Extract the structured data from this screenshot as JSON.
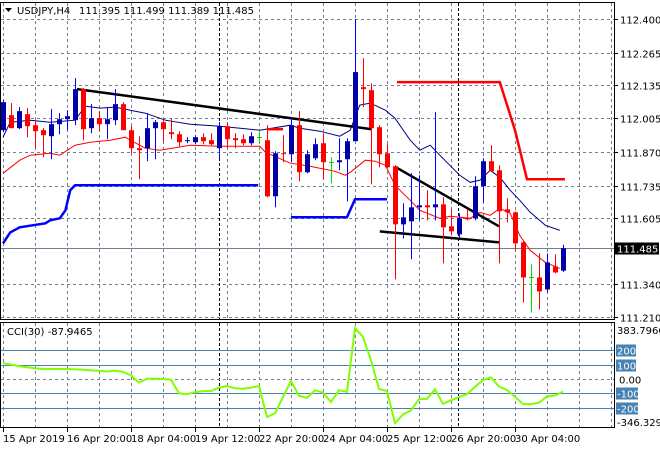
{
  "header": {
    "menu_icon": "triangle-down-icon",
    "symbol": "USDJPY,H4",
    "ohlc": "111.395 111.499 111.389 111.485"
  },
  "colors": {
    "bull_body": "#0000a8",
    "bull_wick": "#0000ff",
    "bear": "#ff0000",
    "doji": "#00e000",
    "ma_fast": "#000080",
    "ma_slow": "#ff0000",
    "channel_low": "#0000ff",
    "channel_high": "#ff0000",
    "trendline": "#000000",
    "cci": "#80ff00",
    "cci_levels": "#4682b4",
    "grid": "#708090"
  },
  "chart_data": [
    {
      "type": "candlestick",
      "title": "USDJPY,H4",
      "price_axis_ticks": [
        "112.400",
        "112.265",
        "112.135",
        "112.005",
        "111.870",
        "111.735",
        "111.605",
        "111.340",
        "111.210"
      ],
      "ylim": [
        111.21,
        112.4
      ],
      "current_price": "111.485",
      "time_axis_labels": [
        "15 Apr 2019",
        "16 Apr 20:00",
        "18 Apr 04:00",
        "19 Apr 12:00",
        "22 Apr 20:00",
        "24 Apr 04:00",
        "25 Apr 12:00",
        "26 Apr 20:00",
        "30 Apr 04:00"
      ],
      "grid": true,
      "candles_ohlc": [
        [
          111.956,
          112.076,
          111.948,
          112.068
        ],
        [
          112.016,
          112.064,
          111.964,
          111.964
        ],
        [
          111.964,
          112.048,
          111.96,
          112.032
        ],
        [
          112.02,
          112.044,
          111.928,
          111.972
        ],
        [
          111.976,
          111.996,
          111.884,
          111.952
        ],
        [
          111.956,
          111.964,
          111.848,
          111.936
        ],
        [
          111.932,
          112.04,
          111.84,
          111.98
        ],
        [
          111.98,
          112.024,
          111.94,
          112.0
        ],
        [
          112.0,
          112.036,
          111.956,
          112.012
        ],
        [
          111.996,
          112.164,
          111.976,
          112.12
        ],
        [
          112.12,
          112.124,
          111.916,
          111.96
        ],
        [
          111.964,
          112.06,
          111.944,
          112.004
        ],
        [
          112.004,
          112.032,
          111.952,
          111.98
        ],
        [
          111.98,
          112.048,
          111.92,
          112.0
        ],
        [
          111.996,
          112.12,
          111.976,
          112.06
        ],
        [
          112.06,
          112.068,
          111.956,
          111.956
        ],
        [
          111.956,
          111.972,
          111.864,
          111.884
        ],
        [
          111.884,
          111.932,
          111.76,
          111.876
        ],
        [
          111.884,
          112.024,
          111.832,
          111.964
        ],
        [
          111.964,
          111.996,
          111.84,
          111.988
        ],
        [
          111.988,
          111.996,
          111.908,
          111.96
        ],
        [
          111.948,
          112.004,
          111.92,
          111.94
        ],
        [
          111.94,
          111.952,
          111.892,
          111.908
        ],
        [
          111.912,
          111.928,
          111.904,
          111.916
        ],
        [
          111.908,
          111.936,
          111.9,
          111.928
        ],
        [
          111.928,
          111.944,
          111.9,
          111.912
        ],
        [
          111.916,
          111.944,
          111.896,
          111.9
        ],
        [
          111.884,
          111.988,
          111.84,
          111.972
        ],
        [
          111.972,
          111.988,
          111.884,
          111.92
        ],
        [
          111.924,
          111.944,
          111.884,
          111.916
        ],
        [
          111.92,
          111.94,
          111.896,
          111.904
        ],
        [
          111.904,
          111.948,
          111.896,
          111.932
        ],
        [
          111.928,
          111.956,
          111.904,
          111.928
        ],
        [
          111.916,
          111.976,
          111.688,
          111.692
        ],
        [
          111.692,
          111.872,
          111.648,
          111.864
        ],
        [
          111.864,
          111.936,
          111.828,
          111.86
        ],
        [
          111.86,
          112.008,
          111.828,
          111.976
        ],
        [
          111.976,
          112.032,
          111.752,
          111.788
        ],
        [
          111.788,
          111.876,
          111.784,
          111.86
        ],
        [
          111.844,
          111.924,
          111.836,
          111.9
        ],
        [
          111.904,
          111.944,
          111.76,
          111.828
        ],
        [
          111.828,
          111.848,
          111.744,
          111.828
        ],
        [
          111.828,
          111.924,
          111.796,
          111.836
        ],
        [
          111.84,
          111.924,
          111.672,
          111.912
        ],
        [
          111.912,
          112.4,
          111.912,
          112.188
        ],
        [
          112.128,
          112.244,
          112.048,
          112.12
        ],
        [
          112.116,
          112.144,
          111.74,
          111.964
        ],
        [
          111.968,
          111.976,
          111.808,
          111.86
        ],
        [
          111.864,
          111.9,
          111.804,
          111.808
        ],
        [
          111.812,
          111.816,
          111.36,
          111.58
        ],
        [
          111.58,
          111.664,
          111.524,
          111.608
        ],
        [
          111.592,
          111.784,
          111.44,
          111.648
        ],
        [
          111.648,
          111.776,
          111.596,
          111.656
        ],
        [
          111.656,
          111.716,
          111.596,
          111.648
        ],
        [
          111.648,
          112.028,
          111.596,
          111.66
        ],
        [
          111.66,
          111.688,
          111.424,
          111.568
        ],
        [
          111.572,
          111.64,
          111.536,
          111.552
        ],
        [
          111.54,
          111.624,
          111.528,
          111.604
        ],
        [
          111.604,
          111.64,
          111.596,
          111.6
        ],
        [
          111.604,
          111.772,
          111.596,
          111.732
        ],
        [
          111.732,
          111.844,
          111.668,
          111.832
        ],
        [
          111.832,
          111.896,
          111.792,
          111.792
        ],
        [
          111.796,
          111.816,
          111.424,
          111.632
        ],
        [
          111.64,
          111.684,
          111.588,
          111.628
        ],
        [
          111.628,
          111.632,
          111.476,
          111.504
        ],
        [
          111.508,
          111.512,
          111.268,
          111.368
        ],
        [
          111.368,
          111.42,
          111.228,
          111.368
        ],
        [
          111.368,
          111.464,
          111.24,
          111.312
        ],
        [
          111.32,
          111.464,
          111.308,
          111.428
        ],
        [
          111.412,
          111.46,
          111.384,
          111.388
        ],
        [
          111.395,
          111.499,
          111.389,
          111.485
        ]
      ],
      "overlays": {
        "ma_fast": [
          [
            0,
            111.928
          ],
          [
            0.9,
            111.988
          ],
          [
            3.4,
            111.996
          ],
          [
            5.9,
            111.988
          ],
          [
            9,
            111.996
          ],
          [
            10.3,
            112.052
          ],
          [
            12.1,
            112.044
          ],
          [
            14,
            112.048
          ],
          [
            15.9,
            112.036
          ],
          [
            17.8,
            112.024
          ],
          [
            20.3,
            111.996
          ],
          [
            23.4,
            111.98
          ],
          [
            27.1,
            111.972
          ],
          [
            32.1,
            111.956
          ],
          [
            35.9,
            111.976
          ],
          [
            37.1,
            111.964
          ],
          [
            39.6,
            111.952
          ],
          [
            42.1,
            111.932
          ],
          [
            43.4,
            111.956
          ],
          [
            44.6,
            112.056
          ],
          [
            45.9,
            112.064
          ],
          [
            47.8,
            112.036
          ],
          [
            49,
            112.004
          ],
          [
            50.9,
            111.916
          ],
          [
            52.1,
            111.876
          ],
          [
            53.4,
            111.896
          ],
          [
            54.6,
            111.856
          ],
          [
            57.1,
            111.776
          ],
          [
            58.4,
            111.748
          ],
          [
            59.6,
            111.756
          ],
          [
            60.9,
            111.796
          ],
          [
            62.1,
            111.768
          ],
          [
            63.4,
            111.716
          ],
          [
            64.6,
            111.676
          ],
          [
            65.9,
            111.628
          ],
          [
            67.8,
            111.576
          ],
          [
            69.6,
            111.556
          ]
        ],
        "ma_slow": [
          [
            0,
            111.784
          ],
          [
            2.1,
            111.836
          ],
          [
            3.4,
            111.856
          ],
          [
            5.9,
            111.864
          ],
          [
            7.1,
            111.856
          ],
          [
            9,
            111.896
          ],
          [
            10.9,
            111.908
          ],
          [
            13.4,
            111.916
          ],
          [
            15.3,
            111.928
          ],
          [
            15.9,
            111.916
          ],
          [
            17.8,
            111.884
          ],
          [
            19.6,
            111.876
          ],
          [
            23.4,
            111.896
          ],
          [
            27.1,
            111.892
          ],
          [
            32.1,
            111.892
          ],
          [
            32.8,
            111.868
          ],
          [
            35.9,
            111.824
          ],
          [
            38.4,
            111.812
          ],
          [
            39.6,
            111.804
          ],
          [
            41.5,
            111.792
          ],
          [
            42.8,
            111.776
          ],
          [
            43.4,
            111.788
          ],
          [
            45.3,
            111.836
          ],
          [
            46.5,
            111.832
          ],
          [
            47.8,
            111.816
          ],
          [
            49,
            111.736
          ],
          [
            50.9,
            111.676
          ],
          [
            52.1,
            111.636
          ],
          [
            54.6,
            111.604
          ],
          [
            55.9,
            111.612
          ],
          [
            58.4,
            111.604
          ],
          [
            59.6,
            111.628
          ],
          [
            60.9,
            111.616
          ],
          [
            62.1,
            111.644
          ],
          [
            63.4,
            111.624
          ],
          [
            64.6,
            111.536
          ],
          [
            65.9,
            111.476
          ],
          [
            67.8,
            111.428
          ],
          [
            69.6,
            111.404
          ]
        ],
        "channel_low": [
          [
            [
              0,
              111.504
            ],
            [
              0.9,
              111.548
            ],
            [
              2.1,
              111.568
            ],
            [
              5.3,
              111.584
            ],
            [
              5.9,
              111.596
            ],
            [
              7.1,
              111.604
            ],
            [
              7.8,
              111.636
            ],
            [
              8.4,
              111.716
            ],
            [
              9,
              111.736
            ],
            [
              31.9,
              111.736
            ]
          ],
          [
            [
              36,
              111.608
            ],
            [
              43,
              111.608
            ],
            [
              44,
              111.68
            ],
            [
              48,
              111.68
            ]
          ]
        ],
        "channel_high": [
          [
            [
              33,
              111.96
            ],
            [
              35,
              111.96
            ]
          ],
          [
            [
              49.25,
              112.148
            ],
            [
              62.1,
              112.148
            ],
            [
              64,
              111.956
            ],
            [
              65.5,
              111.76
            ],
            [
              70.25,
              111.76
            ]
          ]
        ],
        "trendlines": [
          [
            [
              9.25,
              112.12
            ],
            [
              46.1,
              111.96
            ]
          ],
          [
            [
              49.1,
              111.808
            ],
            [
              62,
              111.572
            ]
          ],
          [
            [
              47.1,
              111.552
            ],
            [
              62,
              111.508
            ]
          ]
        ]
      }
    },
    {
      "type": "line",
      "title": "CCI(30) -87.9465",
      "indicator": "CCI(30)",
      "last_value": "-87.9465",
      "ylim": [
        -346.3299,
        383.7966
      ],
      "axis_labels": {
        "max": "383.7966",
        "min": "-346.3299",
        "zero": "0.00"
      },
      "levels": [
        "200",
        "100",
        "-100",
        "-200"
      ],
      "values": [
        111,
        100,
        90,
        82,
        75,
        70,
        70,
        70,
        70,
        68,
        64,
        60,
        57,
        52,
        58,
        50,
        25,
        -25,
        2,
        3,
        0,
        -5,
        -100,
        -105,
        -92,
        -84,
        -84,
        -60,
        -49,
        -65,
        -68,
        -60,
        -49,
        -265,
        -240,
        -125,
        -14,
        -118,
        -132,
        -78,
        -95,
        -160,
        -78,
        -90,
        355,
        293,
        130,
        -70,
        -84,
        -307,
        -248,
        -218,
        -140,
        -139,
        -72,
        -174,
        -148,
        -127,
        -105,
        -55,
        -8,
        12,
        -52,
        -77,
        -125,
        -174,
        -175,
        -165,
        -122,
        -115,
        -88
      ]
    }
  ]
}
